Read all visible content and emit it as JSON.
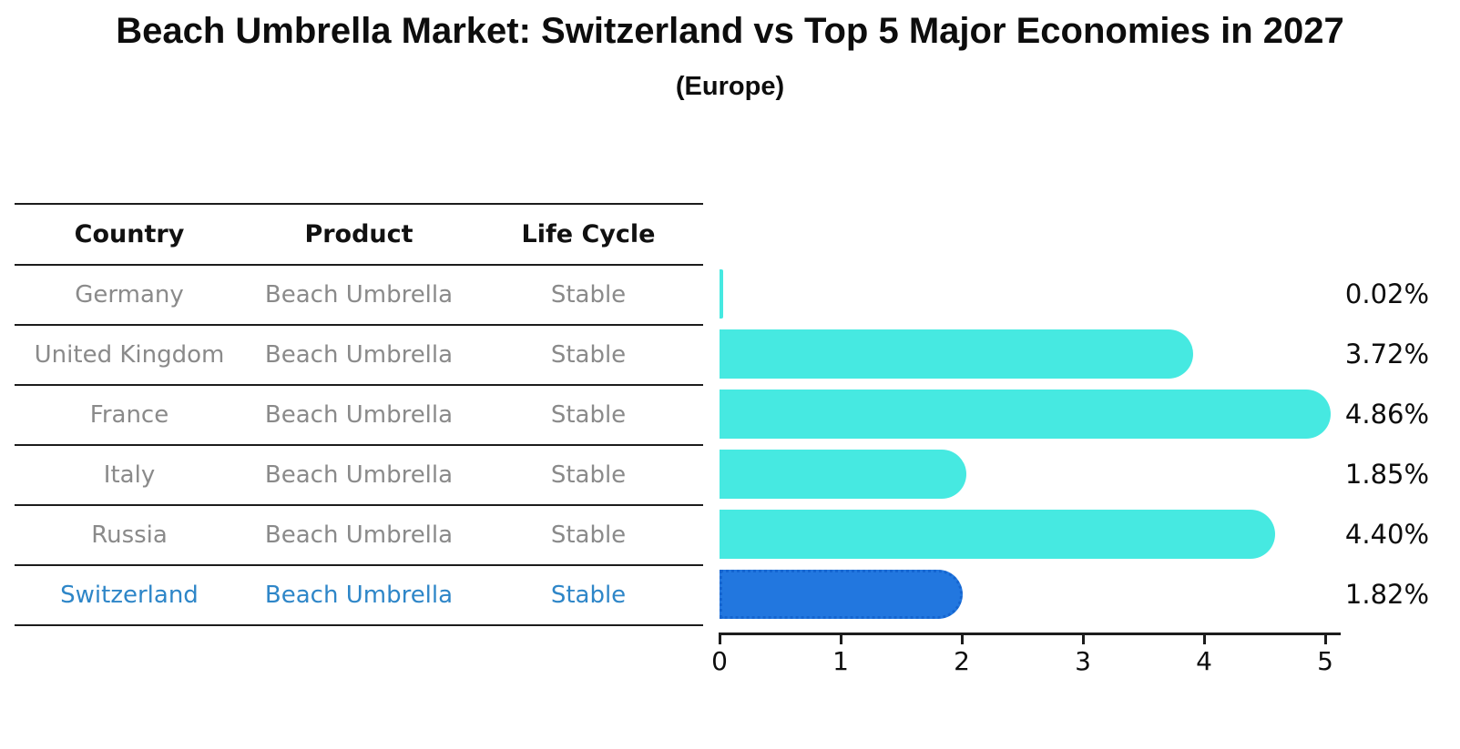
{
  "title": "Beach Umbrella Market: Switzerland vs Top 5 Major Economies in 2027",
  "subtitle": "(Europe)",
  "table": {
    "headers": [
      "Country",
      "Product",
      "Life Cycle"
    ],
    "rows": [
      {
        "country": "Germany",
        "product": "Beach Umbrella",
        "life_cycle": "Stable",
        "highlight": false
      },
      {
        "country": "United Kingdom",
        "product": "Beach Umbrella",
        "life_cycle": "Stable",
        "highlight": false
      },
      {
        "country": "France",
        "product": "Beach Umbrella",
        "life_cycle": "Stable",
        "highlight": false
      },
      {
        "country": "Italy",
        "product": "Beach Umbrella",
        "life_cycle": "Stable",
        "highlight": false
      },
      {
        "country": "Russia",
        "product": "Beach Umbrella",
        "life_cycle": "Stable",
        "highlight": true
      }
    ]
  },
  "chart_data": {
    "type": "bar",
    "orientation": "horizontal",
    "title": "Beach Umbrella Market: Switzerland vs Top 5 Major Economies in 2027",
    "subtitle": "(Europe)",
    "categories": [
      "Germany",
      "United Kingdom",
      "France",
      "Italy",
      "Russia",
      "Switzerland"
    ],
    "values": [
      0.02,
      3.72,
      4.86,
      1.85,
      4.4,
      1.82
    ],
    "value_labels": [
      "0.02%",
      "3.72%",
      "4.86%",
      "1.85%",
      "4.40%",
      "1.82%"
    ],
    "xlabel": "",
    "ylabel": "",
    "xlim": [
      0,
      5
    ],
    "x_ticks": [
      "0",
      "1",
      "2",
      "3",
      "4",
      "5"
    ],
    "grid": false,
    "legend": false,
    "bar_color": "#46E9E1",
    "highlight_index": 5,
    "highlight_color": "#2277DF",
    "highlight_border_color": "#1565D0",
    "highlight_text_color": "#2E86C8",
    "row_text_color": "#8A8A8A",
    "axis_color": "#1c1c1c"
  }
}
